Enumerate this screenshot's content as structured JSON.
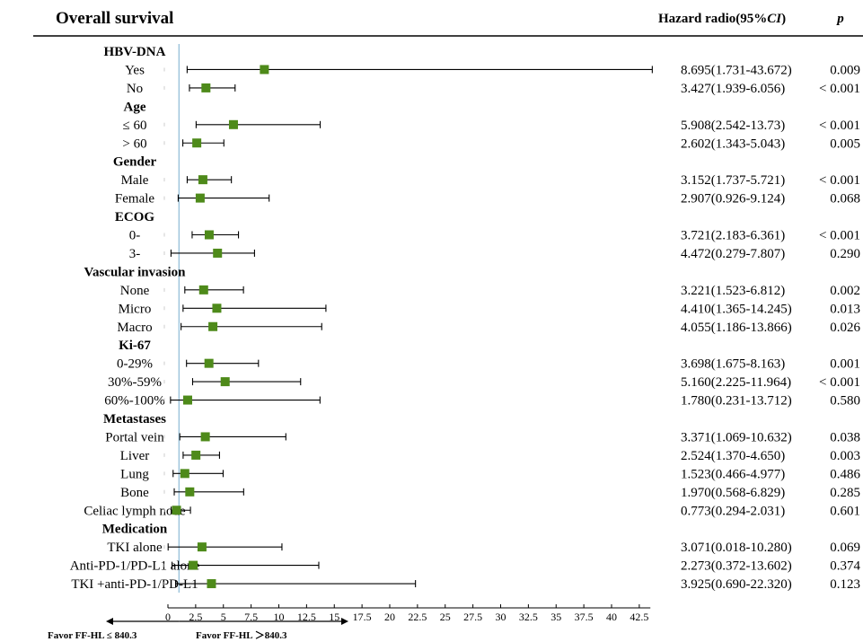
{
  "chart_data": {
    "type": "forest",
    "title": "Overall survival",
    "headers": {
      "hr": "Hazard radio(95%",
      "hr_ci": "CI",
      "hr_close": ")",
      "p": "p"
    },
    "x_axis": {
      "ticks": [
        "0",
        "2.5",
        "5",
        "7.5",
        "10",
        "12.5",
        "15",
        "17.5",
        "20",
        "22.5",
        "25",
        "27.5",
        "30",
        "32.5",
        "35",
        "37.5",
        "40",
        "42.5"
      ],
      "xlim": [
        0,
        43.5
      ],
      "reference_line": 1
    },
    "favor_left": "Favor FF-HL ≤ 840.3",
    "favor_right": "Favor FF-HL ＞840.3",
    "marker_color": "#4e8a1a",
    "reference_color": "#9ec5dc",
    "groups": [
      {
        "name": "HBV-DNA",
        "rows": [
          {
            "label": "Yes",
            "hr": 8.695,
            "lo": 1.731,
            "hi": 43.672,
            "hr_text": "8.695(1.731-43.672)",
            "p": "0.009"
          },
          {
            "label": "No",
            "hr": 3.427,
            "lo": 1.939,
            "hi": 6.056,
            "hr_text": "3.427(1.939-6.056)",
            "p": "< 0.001"
          }
        ]
      },
      {
        "name": "Age",
        "rows": [
          {
            "label": "≤ 60",
            "hr": 5.908,
            "lo": 2.542,
            "hi": 13.73,
            "hr_text": "5.908(2.542-13.73)",
            "p": "< 0.001"
          },
          {
            "label": "> 60",
            "hr": 2.602,
            "lo": 1.343,
            "hi": 5.043,
            "hr_text": "2.602(1.343-5.043)",
            "p": "0.005"
          }
        ]
      },
      {
        "name": "Gender",
        "rows": [
          {
            "label": "Male",
            "hr": 3.152,
            "lo": 1.737,
            "hi": 5.721,
            "hr_text": "3.152(1.737-5.721)",
            "p": "< 0.001"
          },
          {
            "label": "Female",
            "hr": 2.907,
            "lo": 0.926,
            "hi": 9.124,
            "hr_text": "2.907(0.926-9.124)",
            "p": "0.068"
          }
        ]
      },
      {
        "name": "ECOG",
        "rows": [
          {
            "label": "0-",
            "hr": 3.721,
            "lo": 2.183,
            "hi": 6.361,
            "hr_text": "3.721(2.183-6.361)",
            "p": "< 0.001"
          },
          {
            "label": "3-",
            "hr": 4.472,
            "lo": 0.279,
            "hi": 7.807,
            "hr_text": "4.472(0.279-7.807)",
            "p": "0.290"
          }
        ]
      },
      {
        "name": "Vascular invasion",
        "rows": [
          {
            "label": "None",
            "hr": 3.221,
            "lo": 1.523,
            "hi": 6.812,
            "hr_text": "3.221(1.523-6.812)",
            "p": "0.002"
          },
          {
            "label": "Micro",
            "hr": 4.41,
            "lo": 1.365,
            "hi": 14.245,
            "hr_text": "4.410(1.365-14.245)",
            "p": "0.013"
          },
          {
            "label": "Macro",
            "hr": 4.055,
            "lo": 1.186,
            "hi": 13.866,
            "hr_text": "4.055(1.186-13.866)",
            "p": "0.026"
          }
        ]
      },
      {
        "name": "Ki-67",
        "rows": [
          {
            "label": "0-29%",
            "hr": 3.698,
            "lo": 1.675,
            "hi": 8.163,
            "hr_text": "3.698(1.675-8.163)",
            "p": "0.001"
          },
          {
            "label": "30%-59%",
            "hr": 5.16,
            "lo": 2.225,
            "hi": 11.964,
            "hr_text": "5.160(2.225-11.964)",
            "p": "< 0.001"
          },
          {
            "label": "60%-100%",
            "hr": 1.78,
            "lo": 0.231,
            "hi": 13.712,
            "hr_text": "1.780(0.231-13.712)",
            "p": "0.580"
          }
        ]
      },
      {
        "name": "Metastases",
        "rows": [
          {
            "label": "Portal vein",
            "hr": 3.371,
            "lo": 1.069,
            "hi": 10.632,
            "hr_text": "3.371(1.069-10.632)",
            "p": "0.038"
          },
          {
            "label": "Liver",
            "hr": 2.524,
            "lo": 1.37,
            "hi": 4.65,
            "hr_text": "2.524(1.370-4.650)",
            "p": "0.003"
          },
          {
            "label": "Lung",
            "hr": 1.523,
            "lo": 0.466,
            "hi": 4.977,
            "hr_text": "1.523(0.466-4.977)",
            "p": "0.486"
          },
          {
            "label": "Bone",
            "hr": 1.97,
            "lo": 0.568,
            "hi": 6.829,
            "hr_text": "1.970(0.568-6.829)",
            "p": "0.285"
          },
          {
            "label": "Celiac lymph node",
            "hr": 0.773,
            "lo": 0.294,
            "hi": 2.031,
            "hr_text": "0.773(0.294-2.031)",
            "p": "0.601"
          }
        ]
      },
      {
        "name": "Medication",
        "rows": [
          {
            "label": "TKI alone",
            "hr": 3.071,
            "lo": 0.018,
            "hi": 10.28,
            "hr_text": "3.071(0.018-10.280)",
            "p": "0.069"
          },
          {
            "label": "Anti-PD-1/PD-L1 alone",
            "hr": 2.273,
            "lo": 0.372,
            "hi": 13.602,
            "hr_text": "2.273(0.372-13.602)",
            "p": "0.374"
          },
          {
            "label": "TKI +anti-PD-1/PD-L1",
            "hr": 3.925,
            "lo": 0.69,
            "hi": 22.32,
            "hr_text": "3.925(0.690-22.320)",
            "p": "0.123"
          }
        ]
      }
    ]
  }
}
